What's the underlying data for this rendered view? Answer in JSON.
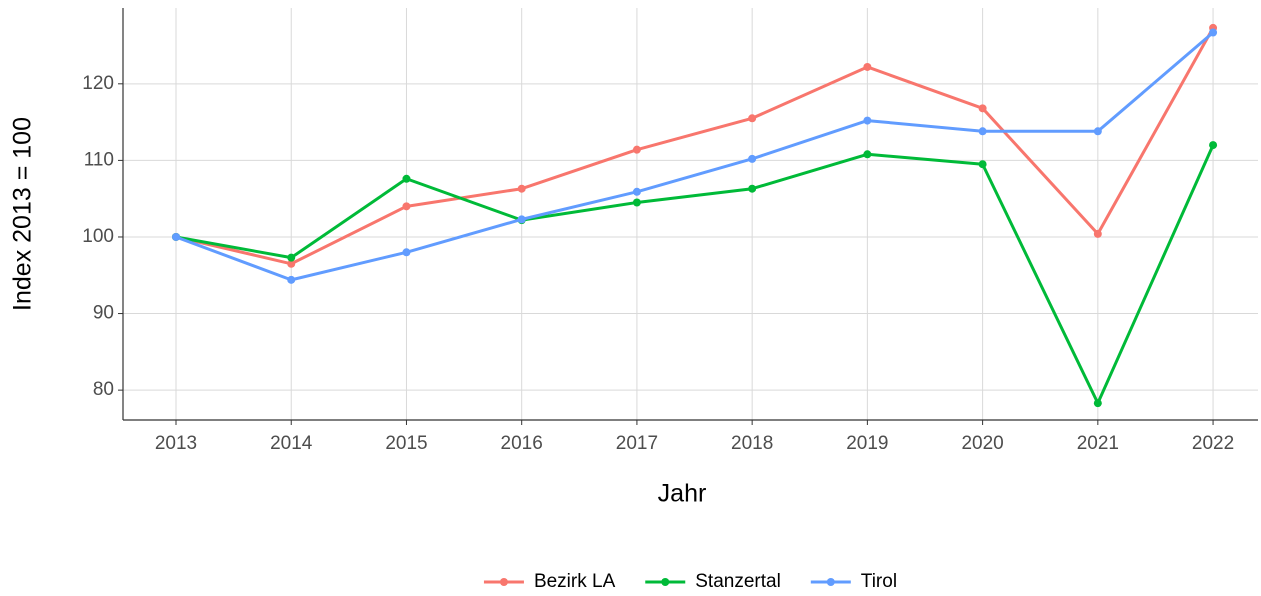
{
  "chart_data": {
    "type": "line",
    "x": [
      2013,
      2014,
      2015,
      2016,
      2017,
      2018,
      2019,
      2020,
      2021,
      2022
    ],
    "series": [
      {
        "name": "Bezirk LA",
        "color": "#F8766D",
        "values": [
          100,
          96.5,
          104,
          106.3,
          111.4,
          115.5,
          122.2,
          116.8,
          100.4,
          127.3
        ]
      },
      {
        "name": "Stanzertal",
        "color": "#00BA38",
        "values": [
          100,
          97.3,
          107.6,
          102.2,
          104.5,
          106.3,
          110.8,
          109.5,
          78.3,
          112
        ]
      },
      {
        "name": "Tirol",
        "color": "#619CFF",
        "values": [
          100,
          94.4,
          98,
          102.3,
          105.9,
          110.2,
          115.2,
          113.8,
          113.8,
          126.7
        ]
      }
    ],
    "xlabel": "Jahr",
    "ylabel": "Index  2013  = 100",
    "xlim": [
      2012.54,
      2022.39
    ],
    "xticks": [
      2013,
      2014,
      2015,
      2016,
      2017,
      2018,
      2019,
      2020,
      2021,
      2022
    ],
    "ylim": [
      76.1,
      129.9
    ],
    "yticks": [
      80,
      90,
      100,
      110,
      120
    ],
    "grid": true,
    "legend": "bottom"
  }
}
